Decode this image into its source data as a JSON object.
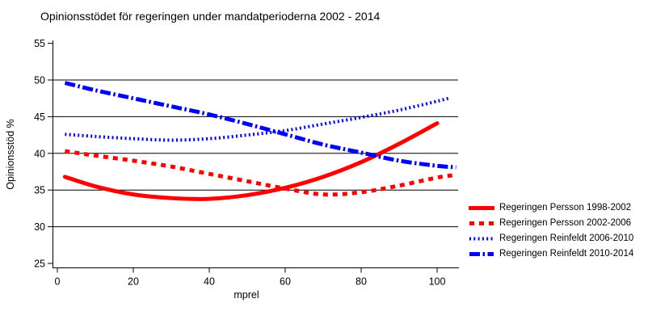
{
  "title": "Opinionsstödet för regeringen under mandatperioderna 2002 - 2014",
  "colors": {
    "red": "#ff0000",
    "blue": "#0000ff",
    "axis": "#000000",
    "background": "#ffffff"
  },
  "chart_data": {
    "type": "line",
    "title": "Opinionsstödet för regeringen under mandatperioderna 2002 - 2014",
    "xlabel": "mprel",
    "ylabel": "Opinionsstöd %",
    "xlim": [
      0,
      100
    ],
    "ylim": [
      25,
      55
    ],
    "xticks": [
      0,
      20,
      40,
      60,
      80,
      100
    ],
    "yticks": [
      25,
      30,
      35,
      40,
      45,
      50,
      55
    ],
    "grid_values": [
      30,
      35,
      40,
      45,
      50
    ],
    "grid": "horizontal-only",
    "legend_position": "right-bottom",
    "series": [
      {
        "name": "Regeringen Persson 1998-2002",
        "color": "#ff0000",
        "dash": null,
        "width": 5,
        "linecap": "round",
        "x": [
          2,
          10,
          20,
          30,
          40,
          50,
          60,
          70,
          80,
          90,
          100
        ],
        "values": [
          36.8,
          35.5,
          34.4,
          33.9,
          33.8,
          34.3,
          35.3,
          36.8,
          38.8,
          41.3,
          44.1
        ]
      },
      {
        "name": "Regeringen Persson 2002-2006",
        "color": "#ff0000",
        "dash": [
          6,
          6
        ],
        "width": 5,
        "linecap": "butt",
        "x": [
          2,
          10,
          20,
          30,
          40,
          50,
          60,
          70,
          80,
          90,
          100,
          104
        ],
        "values": [
          40.3,
          39.7,
          39.0,
          38.2,
          37.2,
          36.2,
          35.2,
          34.4,
          34.7,
          35.6,
          36.7,
          37.0
        ]
      },
      {
        "name": "Regeringen Reinfeldt 2006-2010",
        "color": "#0000ff",
        "dash": [
          2,
          3.3
        ],
        "width": 4,
        "linecap": "butt",
        "x": [
          2,
          10,
          20,
          30,
          40,
          50,
          60,
          70,
          80,
          90,
          100,
          103
        ],
        "values": [
          42.6,
          42.3,
          42.0,
          41.8,
          42.0,
          42.5,
          43.1,
          44.0,
          44.9,
          45.9,
          47.1,
          47.5
        ]
      },
      {
        "name": "Regeringen Reinfeldt 2010-2014",
        "color": "#0000ff",
        "dash": [
          13,
          3.5,
          2.5,
          3.5
        ],
        "width": 5,
        "linecap": "butt",
        "x": [
          2,
          10,
          20,
          30,
          40,
          50,
          60,
          70,
          80,
          90,
          100,
          105
        ],
        "values": [
          49.6,
          48.6,
          47.5,
          46.4,
          45.3,
          44.0,
          42.6,
          41.2,
          40.1,
          39.0,
          38.3,
          38.1
        ]
      }
    ]
  }
}
